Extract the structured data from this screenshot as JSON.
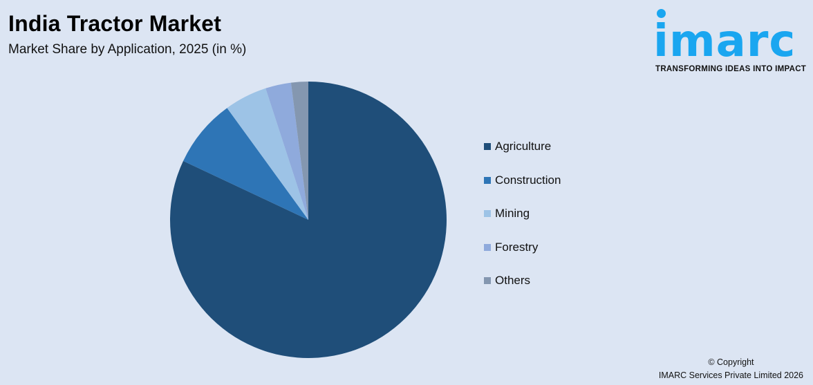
{
  "header": {
    "title": "India Tractor Market",
    "subtitle": "Market Share by Application, 2025 (in %)"
  },
  "logo": {
    "word": "imarc",
    "tagline": "TRANSFORMING IDEAS INTO IMPACT",
    "color": "#1aa6f0"
  },
  "legend": {
    "items": [
      {
        "label": "Agriculture",
        "color": "#1f4e79"
      },
      {
        "label": "Construction",
        "color": "#2e75b6"
      },
      {
        "label": "Mining",
        "color": "#9dc3e6"
      },
      {
        "label": "Forestry",
        "color": "#8faadc"
      },
      {
        "label": "Others",
        "color": "#8497b0"
      }
    ]
  },
  "footer": {
    "copyright_line1": "© Copyright",
    "copyright_line2": "IMARC Services Private Limited 2026"
  },
  "chart_data": {
    "type": "pie",
    "title": "India Tractor Market",
    "subtitle": "Market Share by Application, 2025 (in %)",
    "categories": [
      "Agriculture",
      "Construction",
      "Mining",
      "Forestry",
      "Others"
    ],
    "values": [
      82,
      8,
      5,
      3,
      2
    ],
    "colors": [
      "#1f4e79",
      "#2e75b6",
      "#9dc3e6",
      "#8faadc",
      "#8497b0"
    ],
    "start_angle": "12 o'clock, clockwise",
    "legend_position": "right",
    "data_labels": false
  }
}
